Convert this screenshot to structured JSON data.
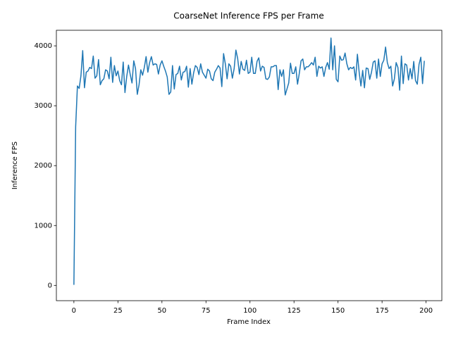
{
  "chart_data": {
    "type": "line",
    "title": "CoarseNet Inference FPS per Frame",
    "x_label": "Frame Index",
    "y_label": "Inference FPS",
    "x": [
      0,
      1,
      2,
      3,
      4,
      5,
      6,
      7,
      8,
      9,
      10,
      11,
      12,
      13,
      14,
      15,
      16,
      17,
      18,
      19,
      20,
      21,
      22,
      23,
      24,
      25,
      26,
      27,
      28,
      29,
      30,
      31,
      32,
      33,
      34,
      35,
      36,
      37,
      38,
      39,
      40,
      41,
      42,
      43,
      44,
      45,
      46,
      47,
      48,
      49,
      50,
      51,
      52,
      53,
      54,
      55,
      56,
      57,
      58,
      59,
      60,
      61,
      62,
      63,
      64,
      65,
      66,
      67,
      68,
      69,
      70,
      71,
      72,
      73,
      74,
      75,
      76,
      77,
      78,
      79,
      80,
      81,
      82,
      83,
      84,
      85,
      86,
      87,
      88,
      89,
      90,
      91,
      92,
      93,
      94,
      95,
      96,
      97,
      98,
      99,
      100,
      101,
      102,
      103,
      104,
      105,
      106,
      107,
      108,
      109,
      110,
      111,
      112,
      113,
      114,
      115,
      116,
      117,
      118,
      119,
      120,
      121,
      122,
      123,
      124,
      125,
      126,
      127,
      128,
      129,
      130,
      131,
      132,
      133,
      134,
      135,
      136,
      137,
      138,
      139,
      140,
      141,
      142,
      143,
      144,
      145,
      146,
      147,
      148,
      149,
      150,
      151,
      152,
      153,
      154,
      155,
      156,
      157,
      158,
      159,
      160,
      161,
      162,
      163,
      164,
      165,
      166,
      167,
      168,
      169,
      170,
      171,
      172,
      173,
      174,
      175,
      176,
      177,
      178,
      179,
      180,
      181,
      182,
      183,
      184,
      185,
      186,
      187,
      188,
      189,
      190,
      191,
      192,
      193,
      194,
      195,
      196,
      197,
      198,
      199
    ],
    "series": [
      {
        "name": "Inference FPS",
        "color": "#1f77b4",
        "values": [
          10,
          2650,
          3330,
          3290,
          3500,
          3920,
          3300,
          3560,
          3580,
          3640,
          3620,
          3830,
          3460,
          3500,
          3770,
          3350,
          3420,
          3450,
          3600,
          3580,
          3450,
          3810,
          3390,
          3670,
          3500,
          3580,
          3420,
          3350,
          3730,
          3220,
          3490,
          3680,
          3520,
          3380,
          3750,
          3620,
          3190,
          3350,
          3600,
          3510,
          3640,
          3820,
          3560,
          3720,
          3820,
          3680,
          3700,
          3690,
          3530,
          3680,
          3750,
          3660,
          3580,
          3480,
          3190,
          3230,
          3670,
          3280,
          3520,
          3540,
          3660,
          3430,
          3560,
          3570,
          3660,
          3310,
          3620,
          3360,
          3550,
          3670,
          3640,
          3520,
          3700,
          3560,
          3510,
          3460,
          3610,
          3580,
          3450,
          3420,
          3560,
          3610,
          3670,
          3630,
          3320,
          3870,
          3700,
          3450,
          3700,
          3660,
          3460,
          3620,
          3930,
          3790,
          3530,
          3740,
          3610,
          3590,
          3760,
          3540,
          3560,
          3810,
          3540,
          3540,
          3740,
          3800,
          3580,
          3660,
          3640,
          3450,
          3440,
          3480,
          3650,
          3650,
          3670,
          3670,
          3270,
          3600,
          3490,
          3600,
          3180,
          3280,
          3380,
          3710,
          3540,
          3540,
          3650,
          3360,
          3540,
          3750,
          3780,
          3600,
          3650,
          3650,
          3680,
          3720,
          3680,
          3810,
          3490,
          3660,
          3630,
          3650,
          3490,
          3640,
          3720,
          3610,
          4130,
          3600,
          4000,
          3440,
          3400,
          3830,
          3760,
          3770,
          3880,
          3700,
          3600,
          3640,
          3620,
          3650,
          3430,
          3860,
          3560,
          3330,
          3590,
          3300,
          3630,
          3620,
          3440,
          3560,
          3730,
          3750,
          3460,
          3780,
          3490,
          3700,
          3760,
          3980,
          3720,
          3620,
          3660,
          3330,
          3450,
          3720,
          3640,
          3260,
          3830,
          3370,
          3700,
          3680,
          3430,
          3620,
          3450,
          3740,
          3420,
          3360,
          3690,
          3810,
          3370,
          3750
        ]
      }
    ],
    "xlim": [
      -9.95,
      208.95
    ],
    "ylim": [
      -255,
      4260
    ],
    "xticks": [
      0,
      25,
      50,
      75,
      100,
      125,
      150,
      175,
      200
    ],
    "yticks": [
      0,
      1000,
      2000,
      3000,
      4000
    ]
  }
}
